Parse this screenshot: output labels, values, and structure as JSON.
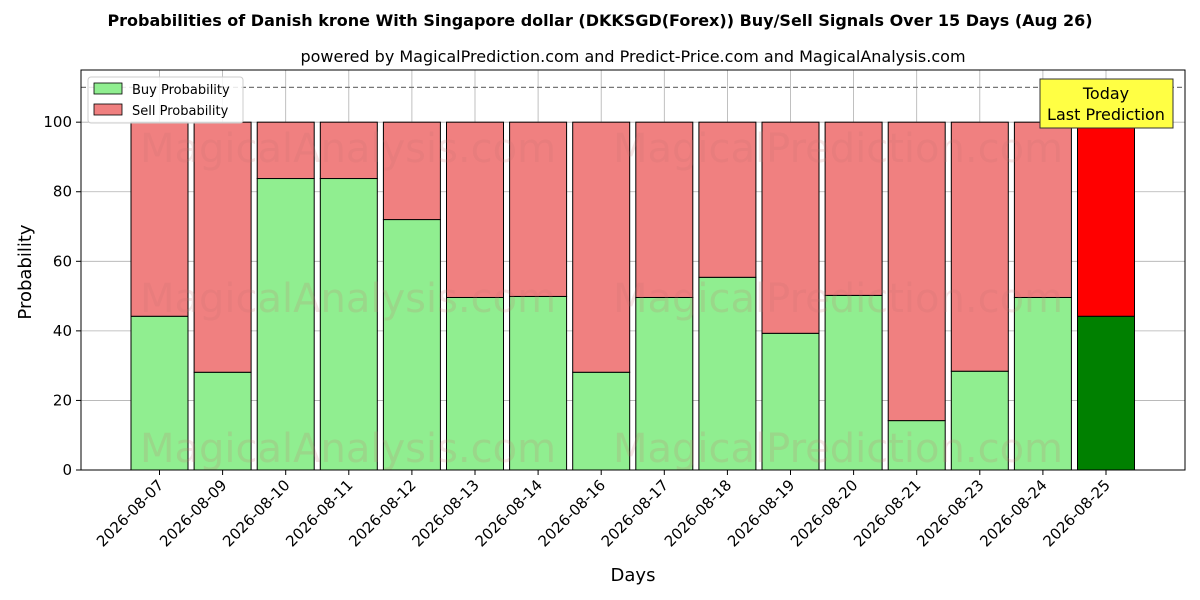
{
  "chart_data": {
    "type": "bar",
    "stacked": true,
    "title": "Probabilities of Danish krone With Singapore dollar (DKKSGD(Forex)) Buy/Sell Signals Over 15 Days (Aug 26)",
    "subtitle": "powered by MagicalPrediction.com and Predict-Price.com and MagicalAnalysis.com",
    "xlabel": "Days",
    "ylabel": "Probability",
    "ylim": [
      0,
      115
    ],
    "yticks": [
      0,
      20,
      40,
      60,
      80,
      100
    ],
    "grid": true,
    "legend_position": "top-left",
    "reference_line": 110,
    "categories": [
      "2026-08-07",
      "2026-08-09",
      "2026-08-10",
      "2026-08-11",
      "2026-08-12",
      "2026-08-13",
      "2026-08-14",
      "2026-08-16",
      "2026-08-17",
      "2026-08-18",
      "2026-08-19",
      "2026-08-20",
      "2026-08-21",
      "2026-08-23",
      "2026-08-24",
      "2026-08-25"
    ],
    "series": [
      {
        "name": "Buy Probability",
        "color": "#90ee90",
        "highlight_color": "#008000",
        "values": [
          44.2,
          28.1,
          83.8,
          83.8,
          72.0,
          49.6,
          49.9,
          28.1,
          49.6,
          55.4,
          39.3,
          50.2,
          14.2,
          28.4,
          49.6,
          44.2
        ]
      },
      {
        "name": "Sell Probability",
        "color": "#f08080",
        "highlight_color": "#ff0000",
        "values": [
          55.8,
          71.9,
          16.2,
          16.2,
          28.0,
          50.4,
          50.1,
          71.9,
          50.4,
          44.6,
          60.7,
          49.8,
          85.8,
          71.6,
          50.4,
          55.8
        ]
      }
    ],
    "highlight_index": 15,
    "annotation": {
      "line1": "Today",
      "line2": "Last Prediction",
      "background": "#ffff44"
    },
    "watermarks": [
      "MagicalAnalysis.com",
      "MagicalPrediction.com"
    ]
  }
}
